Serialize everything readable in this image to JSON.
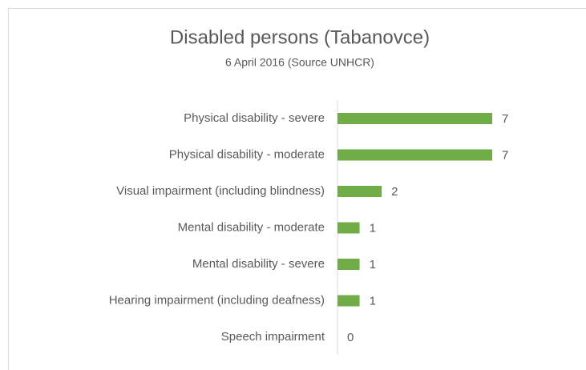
{
  "chart_data": {
    "type": "hbar",
    "title": "Disabled persons (Tabanovce)",
    "subtitle": "6 April 2016 (Source UNHCR)",
    "categories": [
      "Physical disability - severe",
      "Physical disability - moderate",
      "Visual impairment (including blindness)",
      "Mental disability - moderate",
      "Mental disability - severe",
      "Hearing impairment (including deafness)",
      "Speech impairment"
    ],
    "values": [
      7,
      7,
      2,
      1,
      1,
      1,
      0
    ],
    "color": "#70ad47",
    "xlim": [
      0,
      7
    ]
  }
}
